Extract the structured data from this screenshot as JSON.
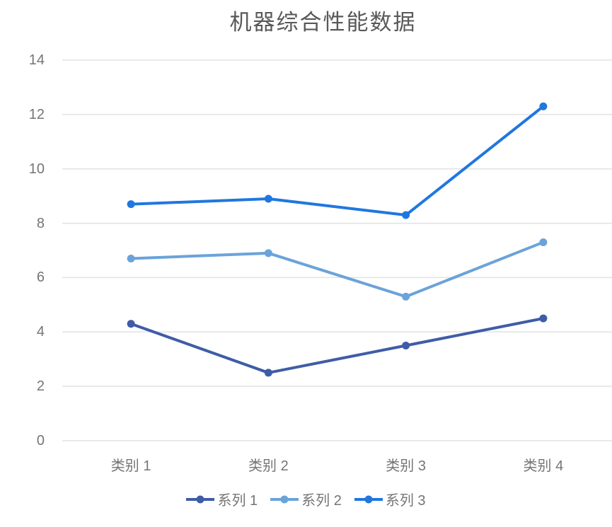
{
  "chart_data": {
    "type": "line",
    "title": "机器综合性能数据",
    "categories": [
      "类别 1",
      "类别 2",
      "类别 3",
      "类别 4"
    ],
    "series": [
      {
        "name": "系列 1",
        "color": "#3F5CA6",
        "values": [
          4.3,
          2.5,
          3.5,
          4.5
        ]
      },
      {
        "name": "系列 2",
        "color": "#6AA3DA",
        "values": [
          6.7,
          6.9,
          5.3,
          7.3
        ]
      },
      {
        "name": "系列 3",
        "color": "#2077DF",
        "values": [
          8.7,
          8.9,
          8.3,
          12.3
        ]
      }
    ],
    "xlabel": "",
    "ylabel": "",
    "ylim": [
      0,
      14
    ],
    "yticks": [
      0,
      2,
      4,
      6,
      8,
      10,
      12,
      14
    ],
    "grid": true,
    "legend_position": "bottom",
    "colors": {
      "grid": "#E2E2E2",
      "tick_label": "#757575",
      "title": "#595959",
      "background": "#FFFFFF"
    }
  }
}
